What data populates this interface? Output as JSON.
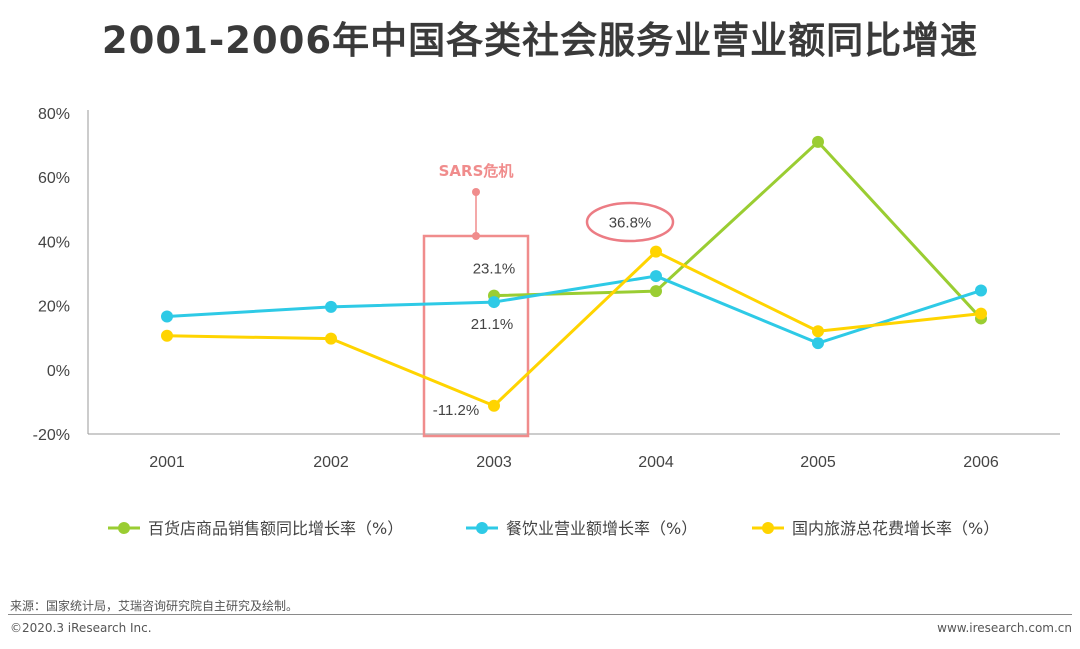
{
  "title": "2001-2006年中国各类社会服务业营业额同比增速",
  "chart_data": {
    "type": "line",
    "categories": [
      "2001",
      "2002",
      "2003",
      "2004",
      "2005",
      "2006"
    ],
    "y_ticks": [
      "80%",
      "60%",
      "40%",
      "20%",
      "0%",
      "-20%"
    ],
    "ylim": [
      -20,
      80
    ],
    "grid": false,
    "legend_position": "bottom",
    "series": [
      {
        "name": "百货店商品销售额同比增长率（%）",
        "color": "#9acd32",
        "values": [
          null,
          null,
          23.1,
          24.5,
          71,
          16
        ]
      },
      {
        "name": "餐饮业营业额增长率（%）",
        "color": "#2ecae6",
        "values": [
          16.6,
          19.6,
          21.1,
          29.2,
          8.3,
          24.7
        ]
      },
      {
        "name": "国内旅游总花费增长率（%）",
        "color": "#ffd400",
        "values": [
          10.6,
          9.7,
          -11.2,
          36.8,
          12,
          17.5
        ]
      }
    ],
    "data_labels": [
      {
        "series": 0,
        "index": 2,
        "text": "23.1%"
      },
      {
        "series": 1,
        "index": 2,
        "text": "21.1%"
      },
      {
        "series": 2,
        "index": 2,
        "text": "-11.2%"
      },
      {
        "series": 2,
        "index": 3,
        "text": "36.8%"
      }
    ],
    "annotation": {
      "label": "SARS危机",
      "category": "2003",
      "color": "#f08c8c"
    }
  },
  "footer": {
    "source": "来源：国家统计局，艾瑞咨询研究院自主研究及绘制。",
    "copyright": "©2020.3 iResearch Inc.",
    "website": "www.iresearch.com.cn"
  }
}
